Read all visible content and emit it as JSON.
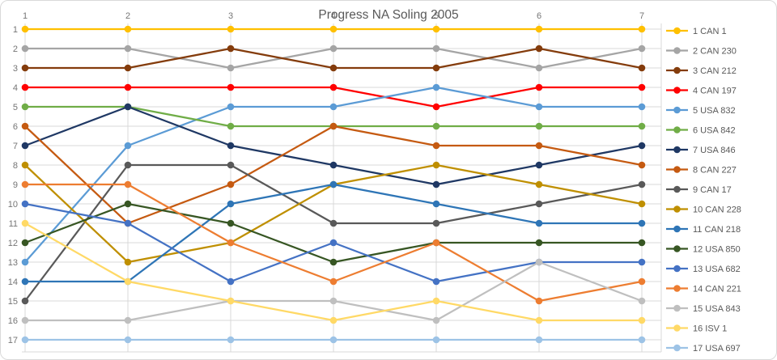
{
  "title": "Progress NA Soling 2005",
  "chart_data": {
    "type": "line",
    "title": "Progress NA Soling 2005",
    "xlabel": "",
    "ylabel": "",
    "x_axis": {
      "position": "top",
      "labels": [
        "1",
        "2",
        "3",
        "4",
        "5",
        "6",
        "7"
      ]
    },
    "y_axis": {
      "position": "left",
      "inverted": true,
      "min": 1,
      "max": 17,
      "labels": [
        "1",
        "2",
        "3",
        "4",
        "5",
        "6",
        "7",
        "8",
        "9",
        "10",
        "11",
        "12",
        "13",
        "14",
        "15",
        "16",
        "17"
      ]
    },
    "grid": true,
    "legend_position": "right",
    "series": [
      {
        "name": "1 CAN 1",
        "color": "#FFC000",
        "values": [
          1,
          1,
          1,
          1,
          1,
          1,
          1
        ]
      },
      {
        "name": "2 CAN 230",
        "color": "#A5A5A5",
        "values": [
          2,
          2,
          3,
          2,
          2,
          3,
          2
        ]
      },
      {
        "name": "3 CAN 212",
        "color": "#843C0C",
        "values": [
          3,
          3,
          2,
          3,
          3,
          2,
          3
        ]
      },
      {
        "name": "4 CAN 197",
        "color": "#FF0000",
        "values": [
          4,
          4,
          4,
          4,
          5,
          4,
          4
        ]
      },
      {
        "name": "5 USA 832",
        "color": "#5B9BD5",
        "values": [
          13,
          7,
          5,
          5,
          4,
          5,
          5
        ]
      },
      {
        "name": "6 USA 842",
        "color": "#70AD47",
        "values": [
          5,
          5,
          6,
          6,
          6,
          6,
          6
        ]
      },
      {
        "name": "7 USA 846",
        "color": "#1F3864",
        "values": [
          7,
          5,
          7,
          8,
          9,
          8,
          7
        ]
      },
      {
        "name": "8 CAN 227",
        "color": "#C55A11",
        "values": [
          6,
          11,
          9,
          6,
          7,
          7,
          8
        ]
      },
      {
        "name": "9 CAN 17",
        "color": "#595959",
        "values": [
          15,
          8,
          8,
          11,
          11,
          10,
          9
        ]
      },
      {
        "name": "10 CAN 228",
        "color": "#BF8F00",
        "values": [
          8,
          13,
          12,
          9,
          8,
          9,
          10
        ]
      },
      {
        "name": "11 CAN 218",
        "color": "#2E75B6",
        "values": [
          14,
          14,
          10,
          9,
          10,
          11,
          11
        ]
      },
      {
        "name": "12 USA 850",
        "color": "#375623",
        "values": [
          12,
          10,
          11,
          13,
          12,
          12,
          12
        ]
      },
      {
        "name": "13 USA 682",
        "color": "#4472C4",
        "values": [
          10,
          11,
          14,
          12,
          14,
          13,
          13
        ]
      },
      {
        "name": "14 CAN 221",
        "color": "#ED7D31",
        "values": [
          9,
          9,
          12,
          14,
          12,
          15,
          14
        ]
      },
      {
        "name": "15 USA 843",
        "color": "#BFBFBF",
        "values": [
          16,
          16,
          15,
          15,
          16,
          13,
          15
        ]
      },
      {
        "name": "16 ISV 1",
        "color": "#FFD966",
        "values": [
          11,
          14,
          15,
          16,
          15,
          16,
          16
        ]
      },
      {
        "name": "17 USA 697",
        "color": "#9DC3E6",
        "values": [
          17,
          17,
          17,
          17,
          17,
          17,
          17
        ]
      }
    ]
  },
  "styles": {
    "background": "#FFFFFF",
    "border_color": "#D9D9D9",
    "grid_color": "#D9D9D9",
    "axis_text_color": "#757575",
    "title_color": "#595959",
    "legend_text_color": "#595959"
  }
}
